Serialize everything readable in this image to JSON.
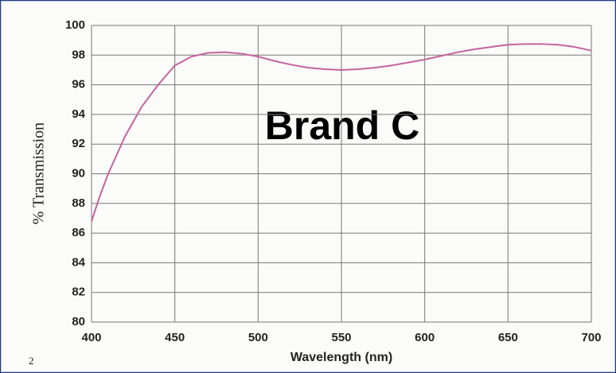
{
  "chart_data": {
    "type": "line",
    "annotation": "Brand C",
    "page_number": "2",
    "x_label": "Wavelength (nm)",
    "y_label": "% Transmission",
    "x": [
      400,
      405,
      410,
      420,
      430,
      440,
      450,
      460,
      470,
      480,
      490,
      500,
      510,
      520,
      530,
      540,
      550,
      560,
      570,
      580,
      590,
      600,
      610,
      620,
      630,
      640,
      650,
      660,
      670,
      680,
      690,
      700
    ],
    "series": [
      {
        "name": "Brand C",
        "color": "#c4649e",
        "values": [
          86.8,
          88.5,
          90,
          92.5,
          94.5,
          96,
          97.3,
          97.9,
          98.15,
          98.2,
          98.1,
          97.9,
          97.6,
          97.35,
          97.15,
          97.05,
          97.0,
          97.05,
          97.15,
          97.3,
          97.5,
          97.7,
          97.95,
          98.2,
          98.4,
          98.55,
          98.7,
          98.75,
          98.75,
          98.7,
          98.55,
          98.3
        ]
      }
    ],
    "xlim": [
      400,
      700
    ],
    "xticks": [
      400,
      450,
      500,
      550,
      600,
      650,
      700
    ],
    "ylim": [
      80,
      100
    ],
    "yticks": [
      80,
      82,
      84,
      86,
      88,
      90,
      92,
      94,
      96,
      98,
      100
    ],
    "grid": true
  }
}
